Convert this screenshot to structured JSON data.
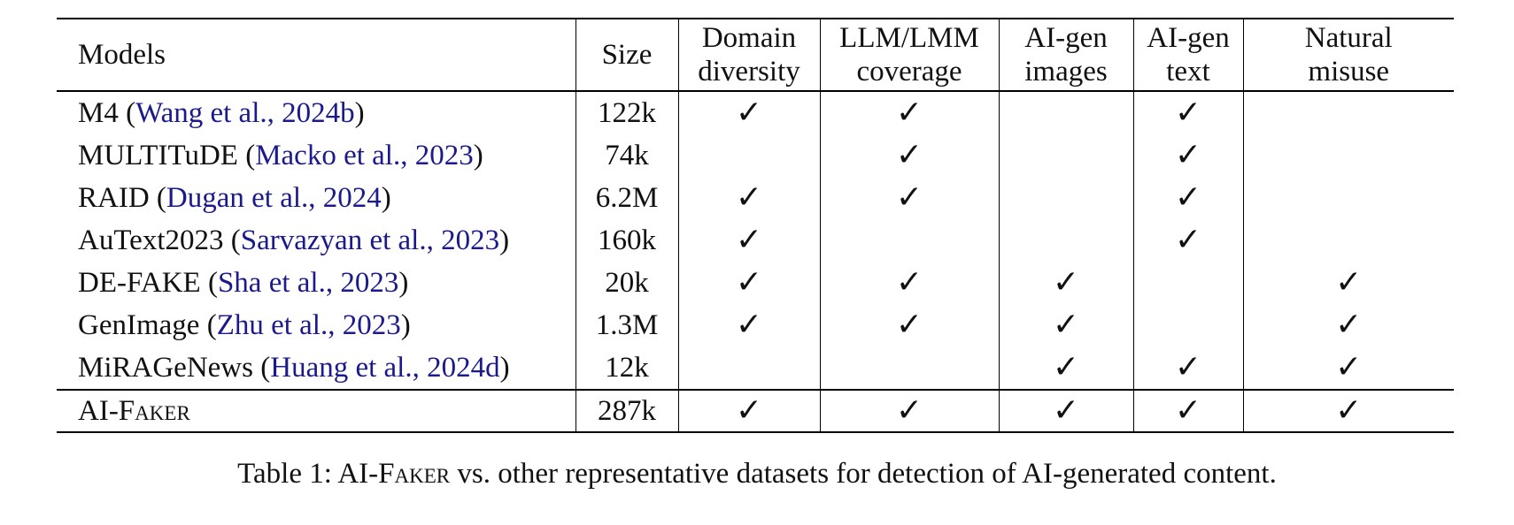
{
  "table": {
    "headers": [
      [
        "Models"
      ],
      [
        "Size"
      ],
      [
        "Domain",
        "diversity"
      ],
      [
        "LLM/LMM",
        "coverage"
      ],
      [
        "AI-gen",
        "images"
      ],
      [
        "AI-gen",
        "text"
      ],
      [
        "Natural",
        "misuse"
      ]
    ],
    "rows": [
      {
        "model": "M4",
        "open": " (",
        "cite": "Wang et al., 2024b",
        "close": ")",
        "size": "122k",
        "marks": [
          true,
          true,
          false,
          true,
          false
        ]
      },
      {
        "model": "MULTITuDE",
        "open": " (",
        "cite": "Macko et al., 2023",
        "close": ")",
        "size": "74k",
        "marks": [
          false,
          true,
          false,
          true,
          false
        ]
      },
      {
        "model": "RAID",
        "open": " (",
        "cite": "Dugan et al., 2024",
        "close": ")",
        "size": "6.2M",
        "marks": [
          true,
          true,
          false,
          true,
          false
        ]
      },
      {
        "model": "AuText2023",
        "open": " (",
        "cite": "Sarvazyan et al., 2023",
        "close": ")",
        "size": "160k",
        "marks": [
          true,
          false,
          false,
          true,
          false
        ]
      },
      {
        "model": "DE-FAKE",
        "open": " (",
        "cite": "Sha et al., 2023",
        "close": ")",
        "size": "20k",
        "marks": [
          true,
          true,
          true,
          false,
          true
        ]
      },
      {
        "model": "GenImage",
        "open": " (",
        "cite": "Zhu et al., 2023",
        "close": ")",
        "size": "1.3M",
        "marks": [
          true,
          true,
          true,
          false,
          true
        ]
      },
      {
        "model": "MiRAGeNews",
        "open": " (",
        "cite": "Huang et al., 2024d",
        "close": ")",
        "size": "12k",
        "marks": [
          false,
          false,
          true,
          true,
          true
        ]
      }
    ],
    "final": {
      "model_prefix": "AI-F",
      "model_rest": "aker",
      "size": "287k",
      "marks": [
        true,
        true,
        true,
        true,
        true
      ]
    },
    "check_glyph": "✓"
  },
  "caption": {
    "prefix": "Table 1: AI-F",
    "smallcaps": "aker",
    "rest": " vs. other representative datasets for detection of AI-generated content."
  },
  "colors": {
    "citation": "#1a1a8c",
    "text": "#111111",
    "rule": "#000000"
  }
}
